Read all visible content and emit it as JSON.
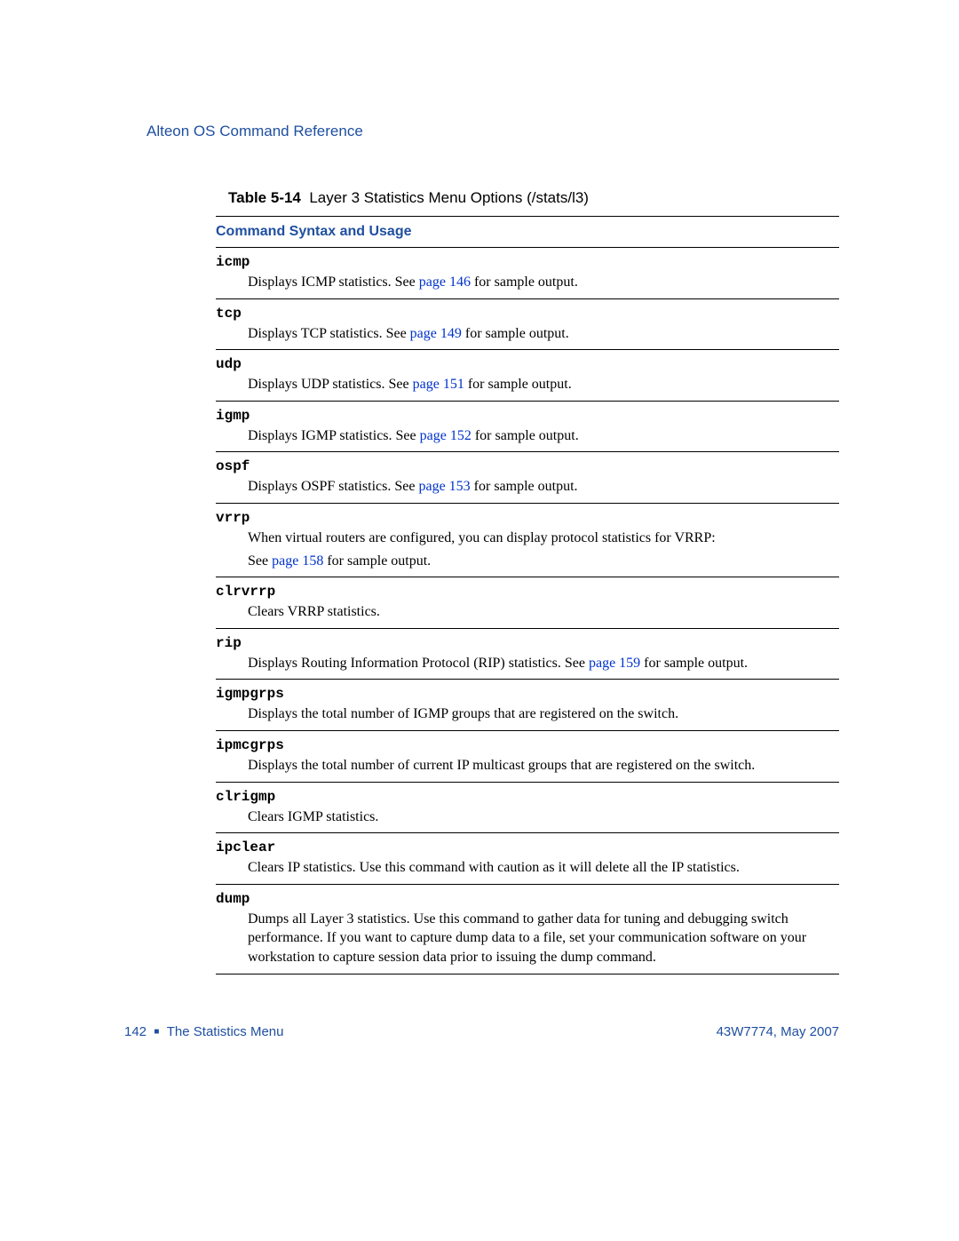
{
  "header": {
    "title": "Alteon OS Command Reference"
  },
  "caption": {
    "label": "Table 5-14",
    "text": "Layer 3 Statistics Menu Options (/stats/l3)"
  },
  "sectionHeader": "Command Syntax and Usage",
  "entries": [
    {
      "cmd": "icmp",
      "pre": "Displays ICMP statistics. See ",
      "link": "page 146",
      "post": " for sample output."
    },
    {
      "cmd": "tcp",
      "pre": "Displays TCP statistics. See ",
      "link": "page 149",
      "post": " for sample output."
    },
    {
      "cmd": "udp",
      "pre": "Displays UDP statistics. See ",
      "link": "page 151",
      "post": " for sample output."
    },
    {
      "cmd": "igmp",
      "pre": "Displays IGMP statistics. See ",
      "link": "page 152",
      "post": " for sample output."
    },
    {
      "cmd": "ospf",
      "pre": "Displays OSPF statistics. See ",
      "link": "page 153",
      "post": " for sample output."
    },
    {
      "cmd": "vrrp",
      "pre": "When virtual routers are configured, you can display protocol statistics for VRRP:",
      "line2pre": "See ",
      "link": "page 158",
      "post": " for sample output."
    },
    {
      "cmd": "clrvrrp",
      "pre": "Clears VRRP statistics."
    },
    {
      "cmd": "rip",
      "pre": "Displays Routing Information Protocol (RIP) statistics. See ",
      "link": "page 159",
      "post": " for sample output."
    },
    {
      "cmd": "igmpgrps",
      "pre": "Displays the total number of IGMP groups that are registered on the switch."
    },
    {
      "cmd": "ipmcgrps",
      "pre": "Displays the total number of current IP multicast groups that are registered on the switch."
    },
    {
      "cmd": "clrigmp",
      "pre": "Clears IGMP statistics."
    },
    {
      "cmd": "ipclear",
      "pre": "Clears IP statistics. Use this command with caution as it will delete all the IP statistics."
    },
    {
      "cmd": "dump",
      "pre": "Dumps all Layer 3 statistics. Use this command to gather data for tuning and debugging switch performance. If you want to capture dump data to a file, set your communication software on your workstation to capture session data prior to issuing the dump command."
    }
  ],
  "footer": {
    "pageNum": "142",
    "chapter": "The Statistics Menu",
    "docRef": "43W7774, May 2007"
  }
}
